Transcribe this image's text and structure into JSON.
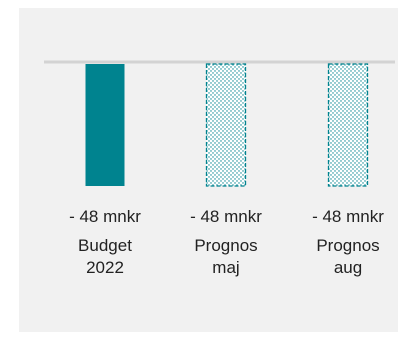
{
  "colors": {
    "background": "#f1f1f1",
    "budget_fill": "#00838f",
    "forecast_stroke": "#00838f",
    "axis_line": "#d3d3d3",
    "text": "#222222"
  },
  "chart_data": {
    "type": "bar",
    "orientation": "vertical-down",
    "categories": [
      [
        "Budget",
        "2022"
      ],
      [
        "Prognos",
        "maj"
      ],
      [
        "Prognos",
        "aug"
      ]
    ],
    "values": [
      -48,
      -48,
      -48
    ],
    "value_labels": [
      "- 48 mnkr",
      "- 48 mnkr",
      "- 48 mnkr"
    ],
    "bar_styles": [
      "solid",
      "dotted-outline",
      "dotted-outline"
    ],
    "unit": "mnkr",
    "ylim": [
      -48,
      0
    ],
    "grid": false,
    "legend": "none"
  }
}
